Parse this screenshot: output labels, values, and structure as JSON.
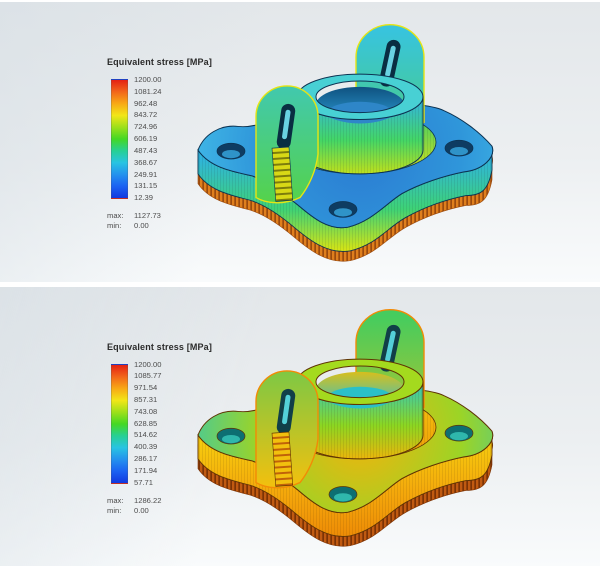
{
  "app": {
    "background_top": "#e3e7ea",
    "background_bottom": "#f9fbfc",
    "divider_color": "#ffffff"
  },
  "colormap": [
    "#e42113",
    "#f2661a",
    "#f8a915",
    "#f2e618",
    "#9de01a",
    "#44d823",
    "#27d094",
    "#28c4e2",
    "#2492ee",
    "#1b62f2",
    "#1238e0"
  ],
  "panels": [
    {
      "name": "top-viewport",
      "legend": {
        "title": "Equivalent stress [MPa]",
        "ticks": [
          "1200.00",
          "1081.24",
          "962.48",
          "843.72",
          "724.96",
          "606.19",
          "487.43",
          "368.67",
          "249.91",
          "131.15",
          "12.39"
        ],
        "max_label": "max:",
        "max_value": "1127.73",
        "min_label": "min:",
        "min_value": "0.00"
      },
      "model_colors": {
        "outline": "#0d3352",
        "base-top-in": "#2b7ad2",
        "base-top-mid": "#2f96da",
        "base-top-out": "#44bfe9",
        "base-side-top": "#2fb4dc",
        "base-side-mid": "#3ed276",
        "base-side-bot": "#d7e414",
        "collar-top": "#4ecf5e",
        "collar-bot": "#dfe316",
        "bowl-top": "#31b2e8",
        "bowl-mid": "#44d666",
        "bowl-bot": "#c6e018",
        "rim": "#48d0d4",
        "inner-top": "#0d4e7c",
        "inner-bot": "#2f9fd8",
        "floor": "#2e86c8",
        "hole-dark": "#0e3c62",
        "hole-lite": "#2f93c8",
        "ear-top": "#38c4dc",
        "ear-bot": "#54d24e",
        "edge": "#e6e414",
        "slot-dark": "#092e42",
        "slot-lite": "#74e4f4",
        "fringe-a": "#df7f1d",
        "fringe-b": "#9a4a0e",
        "strip-a": "#d8d816",
        "strip-b": "#7c7c0c"
      }
    },
    {
      "name": "bottom-viewport",
      "legend": {
        "title": "Equivalent stress [MPa]",
        "ticks": [
          "1200.00",
          "1085.77",
          "971.54",
          "857.31",
          "743.08",
          "628.85",
          "514.62",
          "400.39",
          "286.17",
          "171.94",
          "57.71"
        ],
        "max_label": "max:",
        "max_value": "1286.22",
        "min_label": "min:",
        "min_value": "0.00"
      },
      "model_colors": {
        "outline": "#5f3404",
        "base-top-in": "#f2b30c",
        "base-top-mid": "#9cd426",
        "base-top-out": "#39c8ad",
        "base-side-top": "#f6ca0e",
        "base-side-mid": "#f4a70b",
        "base-side-bot": "#ee8c06",
        "collar-top": "#f4bc0d",
        "collar-bot": "#ef9c08",
        "bowl-top": "#2fc8c2",
        "bowl-mid": "#8cd622",
        "bowl-bot": "#f0b40a",
        "rim": "#a4da1e",
        "inner-top": "#e0be13",
        "inner-bot": "#2fc3cb",
        "floor": "#2bc0c8",
        "hole-dark": "#0d6f72",
        "hole-lite": "#2fb7ac",
        "ear-top": "#46cc5e",
        "ear-bot": "#f0c00f",
        "edge": "#f28a06",
        "slot-dark": "#113f48",
        "slot-lite": "#5ce0e8",
        "fringe-a": "#c05a11",
        "fringe-b": "#7c3305",
        "strip-a": "#f2c00e",
        "strip-b": "#c06209"
      }
    }
  ]
}
